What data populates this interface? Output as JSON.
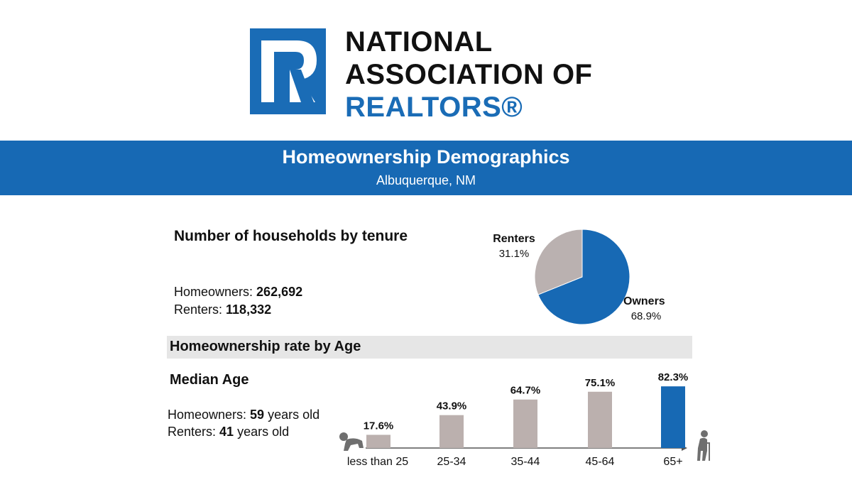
{
  "logo": {
    "line1": "NATIONAL",
    "line2": "ASSOCIATION OF",
    "line3": "REALTORS®",
    "mark_letter": "R"
  },
  "banner": {
    "title": "Homeownership Demographics",
    "subtitle": "Albuquerque, NM"
  },
  "households": {
    "title": "Number of households by tenure",
    "owners_label": "Homeowners: ",
    "owners_value": "262,692",
    "renters_label": "Renters: ",
    "renters_value": "118,332"
  },
  "age_section": {
    "title": "Homeownership rate by Age"
  },
  "median_age": {
    "title": "Median Age",
    "owners_label": "Homeowners: ",
    "owners_value": "59",
    "owners_suffix": " years old",
    "renters_label": "Renters: ",
    "renters_value": "41",
    "renters_suffix": " years old"
  },
  "colors": {
    "brand_blue": "#1769b4",
    "bar_gray": "#bbb0ae",
    "pie_gray": "#bab1b0",
    "band_gray": "#e6e6e6"
  },
  "icons": {
    "left": "crawling-baby-icon",
    "right": "elderly-person-with-cane-icon"
  },
  "chart_data": [
    {
      "type": "pie",
      "slices": [
        {
          "label": "Owners",
          "value": 68.9,
          "display": "68.9%",
          "color": "#1769b4"
        },
        {
          "label": "Renters",
          "value": 31.1,
          "display": "31.1%",
          "color": "#bab1b0"
        }
      ]
    },
    {
      "type": "bar",
      "categories": [
        "less than 25",
        "25-34",
        "35-44",
        "45-64",
        "65+"
      ],
      "values": [
        17.6,
        43.9,
        64.7,
        75.1,
        82.3
      ],
      "value_labels": [
        "17.6%",
        "43.9%",
        "64.7%",
        "75.1%",
        "82.3%"
      ],
      "colors": [
        "#bbb0ae",
        "#bbb0ae",
        "#bbb0ae",
        "#bbb0ae",
        "#1769b4"
      ],
      "ylim": [
        0,
        100
      ]
    }
  ]
}
